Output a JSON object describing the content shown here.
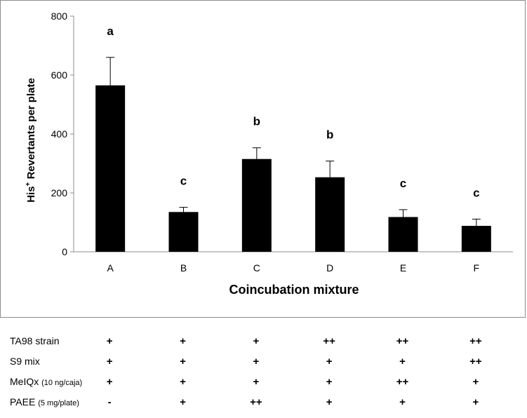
{
  "chart_data": {
    "type": "bar",
    "categories": [
      "A",
      "B",
      "C",
      "D",
      "E",
      "F"
    ],
    "values": [
      565,
      135,
      315,
      253,
      118,
      88
    ],
    "errors": [
      95,
      16,
      38,
      55,
      25,
      23
    ],
    "significance": [
      "a",
      "c",
      "b",
      "b",
      "c",
      "c"
    ],
    "ylabel_main": "His",
    "ylabel_sup": "+",
    "ylabel_rest": " Revertants per plate",
    "xlabel": "Coincubation mixture",
    "ylim": [
      0,
      800
    ],
    "yticks": [
      "0",
      "200",
      "400",
      "600",
      "800"
    ],
    "bar_color": "#000000",
    "grid": false
  },
  "conditions": {
    "rows": [
      {
        "label": "TA98 strain",
        "note": "",
        "values": [
          "+",
          "+",
          "+",
          "++",
          "++",
          "++"
        ]
      },
      {
        "label": "S9 mix",
        "note": "",
        "values": [
          "+",
          "+",
          "+",
          "+",
          "+",
          "++"
        ]
      },
      {
        "label": "MeIQx ",
        "note": "(10 ng/caja)",
        "values": [
          "+",
          "+",
          "+",
          "+",
          "++",
          "+"
        ]
      },
      {
        "label": "PAEE ",
        "note": "(5 mg/plate)",
        "values": [
          "-",
          "+",
          "++",
          "+",
          "+",
          "+"
        ]
      }
    ]
  }
}
